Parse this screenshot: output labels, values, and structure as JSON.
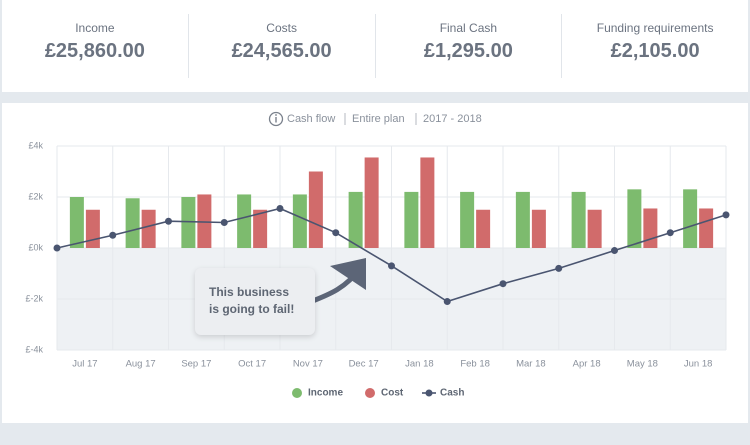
{
  "summary": [
    {
      "label": "Income",
      "value": "£25,860.00"
    },
    {
      "label": "Costs",
      "value": "£24,565.00"
    },
    {
      "label": "Final Cash",
      "value": "£1,295.00"
    },
    {
      "label": "Funding requirements",
      "value": "£2,105.00"
    }
  ],
  "chart_data": {
    "type": "bar",
    "header": [
      "Cash flow",
      "Entire plan",
      "2017 - 2018"
    ],
    "categories": [
      "Jul 17",
      "Aug 17",
      "Sep 17",
      "Oct 17",
      "Nov 17",
      "Dec 17",
      "Jan 18",
      "Feb 18",
      "Mar 18",
      "Apr 18",
      "May 18",
      "Jun 18"
    ],
    "series": [
      {
        "name": "Income",
        "color": "#7dbb6e",
        "values": [
          2000,
          1950,
          2000,
          2100,
          2100,
          2200,
          2200,
          2200,
          2200,
          2200,
          2300,
          2300
        ]
      },
      {
        "name": "Cost",
        "color": "#d16b6b",
        "values": [
          1500,
          1500,
          2100,
          1500,
          3000,
          3550,
          3550,
          1500,
          1500,
          1500,
          1550,
          1550
        ]
      }
    ],
    "cash": {
      "name": "Cash",
      "color": "#4a5570",
      "values": [
        0,
        500,
        1050,
        1000,
        1550,
        600,
        -700,
        -2100,
        -1400,
        -800,
        -100,
        600,
        1300
      ]
    },
    "ylim": [
      -4000,
      4000
    ],
    "yticks": [
      {
        "value": 4000,
        "label": "£4k"
      },
      {
        "value": 2000,
        "label": "£2k"
      },
      {
        "value": 0,
        "label": "£0k"
      },
      {
        "value": -2000,
        "label": "£-2k"
      },
      {
        "value": -4000,
        "label": "£-4k"
      }
    ],
    "grid": true,
    "annotation": "This business is going to fail!"
  }
}
